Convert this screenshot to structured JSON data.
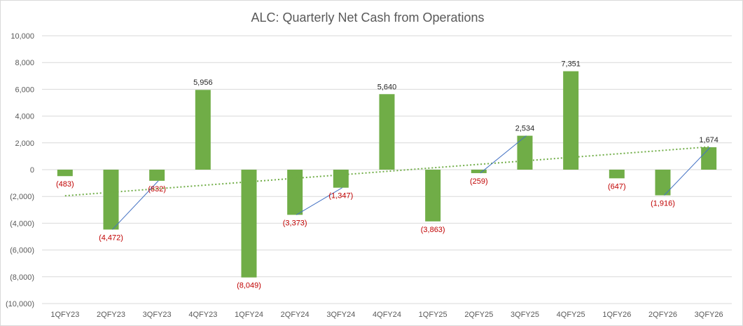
{
  "chart_data": {
    "type": "bar",
    "title": "ALC: Quarterly Net Cash from Operations",
    "categories": [
      "1QFY23",
      "2QFY23",
      "3QFY23",
      "4QFY23",
      "1QFY24",
      "2QFY24",
      "3QFY24",
      "4QFY24",
      "1QFY25",
      "2QFY25",
      "3QFY25",
      "4QFY25",
      "1QFY26",
      "2QFY26",
      "3QFY26"
    ],
    "series": [
      {
        "values": [
          -483,
          -4472,
          -832,
          5956,
          -8049,
          -3373,
          -1347,
          5640,
          -3863,
          -259,
          2534,
          7351,
          -647,
          -1916,
          1674
        ],
        "data_labels": [
          "(483)",
          "(4,472)",
          "(832)",
          "5,956",
          "(8,049)",
          "(3,373)",
          "(1,347)",
          "5,640",
          "(3,863)",
          "(259)",
          "2,534",
          "7,351",
          "(647)",
          "(1,916)",
          "1,674"
        ]
      }
    ],
    "ylim": [
      -10000,
      10000
    ],
    "yticks": [
      10000,
      8000,
      6000,
      4000,
      2000,
      0,
      -2000,
      -4000,
      -6000,
      -8000,
      -10000
    ],
    "ytick_labels": [
      "10,000",
      "8,000",
      "6,000",
      "4,000",
      "2,000",
      "0",
      "(2,000)",
      "(4,000)",
      "(6,000)",
      "(8,000)",
      "(10,000)"
    ],
    "grid": true,
    "legend": "none",
    "trendline": {
      "type": "linear",
      "style": "dotted",
      "start": -1950,
      "end": 1700
    },
    "annotation_lines": [
      {
        "from": "2QFY23",
        "to": "3QFY23"
      },
      {
        "from": "2QFY24",
        "to": "3QFY24"
      },
      {
        "from": "2QFY25",
        "to": "3QFY25"
      },
      {
        "from": "2QFY26",
        "to": "3QFY26"
      }
    ],
    "colors": {
      "bar": "#70ad47",
      "negative_label": "#c00000",
      "positive_label": "#262626",
      "trendline": "#70ad47",
      "annotation_line": "#4472c4",
      "grid": "#d9d9d9"
    }
  }
}
